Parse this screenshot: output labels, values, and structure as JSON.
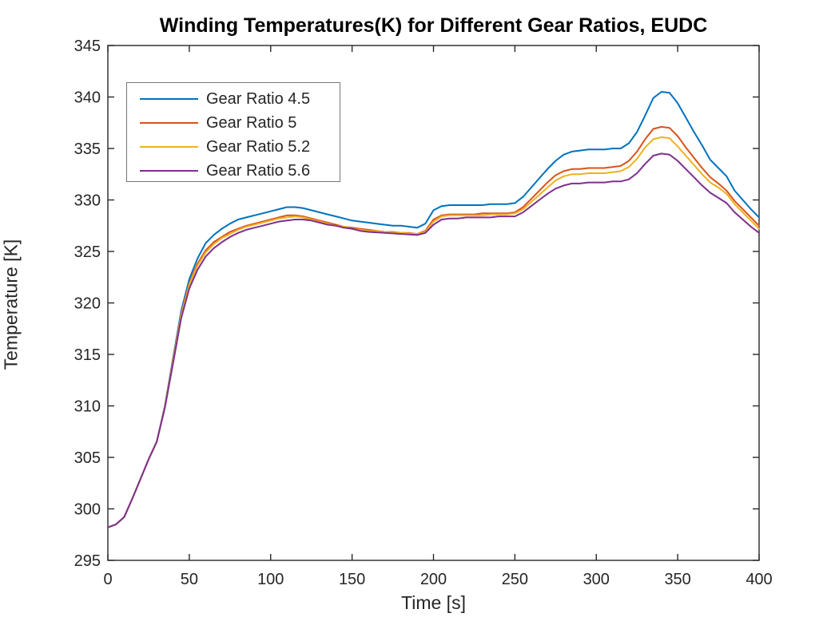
{
  "figure": {
    "title": "Winding Temperatures(K) for Different Gear Ratios, EUDC",
    "xlabel": "Time [s]",
    "ylabel": "Temperature [K]"
  },
  "chart_data": {
    "type": "line",
    "title": "Winding Temperatures(K) for Different Gear Ratios, EUDC",
    "xlabel": "Time [s]",
    "ylabel": "Temperature [K]",
    "xlim": [
      0,
      400
    ],
    "ylim": [
      295,
      345
    ],
    "x_ticks": [
      0,
      50,
      100,
      150,
      200,
      250,
      300,
      350,
      400
    ],
    "y_ticks": [
      295,
      300,
      305,
      310,
      315,
      320,
      325,
      330,
      335,
      340,
      345
    ],
    "grid": false,
    "legend_position": "top-left",
    "axis_color": "#262626",
    "x": [
      0,
      5,
      10,
      15,
      20,
      25,
      30,
      35,
      40,
      45,
      50,
      55,
      60,
      65,
      70,
      75,
      80,
      85,
      90,
      95,
      100,
      105,
      110,
      115,
      120,
      125,
      130,
      135,
      140,
      145,
      150,
      155,
      160,
      165,
      170,
      175,
      180,
      185,
      190,
      195,
      200,
      205,
      210,
      215,
      220,
      225,
      230,
      235,
      240,
      245,
      250,
      255,
      260,
      265,
      270,
      275,
      280,
      285,
      290,
      295,
      300,
      305,
      310,
      315,
      320,
      325,
      330,
      335,
      340,
      345,
      350,
      355,
      360,
      365,
      370,
      375,
      380,
      385,
      390,
      395,
      400
    ],
    "series": [
      {
        "name": "Gear Ratio 4.5",
        "color": "#0072BD",
        "values": [
          298.2,
          298.5,
          299.2,
          301.0,
          302.9,
          304.8,
          306.5,
          310.0,
          314.6,
          319.2,
          322.3,
          324.3,
          325.8,
          326.6,
          327.2,
          327.7,
          328.1,
          328.3,
          328.5,
          328.7,
          328.9,
          329.1,
          329.3,
          329.3,
          329.2,
          329.0,
          328.8,
          328.6,
          328.4,
          328.2,
          328.0,
          327.9,
          327.8,
          327.7,
          327.6,
          327.5,
          327.5,
          327.4,
          327.3,
          327.7,
          329.0,
          329.4,
          329.5,
          329.5,
          329.5,
          329.5,
          329.5,
          329.6,
          329.6,
          329.6,
          329.7,
          330.3,
          331.2,
          332.1,
          333.0,
          333.8,
          334.4,
          334.7,
          334.8,
          334.9,
          334.9,
          334.9,
          335.0,
          335.0,
          335.5,
          336.6,
          338.2,
          339.9,
          340.5,
          340.4,
          339.4,
          338.0,
          336.6,
          335.3,
          333.9,
          333.1,
          332.3,
          330.9,
          330.0,
          329.1,
          328.3
        ]
      },
      {
        "name": "Gear Ratio 5",
        "color": "#D95319",
        "values": [
          298.2,
          298.5,
          299.2,
          301.0,
          302.9,
          304.8,
          306.5,
          309.9,
          314.4,
          318.9,
          321.9,
          323.8,
          325.1,
          325.9,
          326.4,
          326.9,
          327.2,
          327.5,
          327.7,
          327.9,
          328.1,
          328.3,
          328.5,
          328.5,
          328.4,
          328.2,
          328.0,
          327.8,
          327.6,
          327.4,
          327.3,
          327.2,
          327.1,
          327.0,
          326.9,
          326.9,
          326.8,
          326.8,
          326.7,
          327.0,
          328.1,
          328.5,
          328.6,
          328.6,
          328.6,
          328.6,
          328.7,
          328.7,
          328.7,
          328.7,
          328.8,
          329.3,
          330.1,
          330.9,
          331.7,
          332.4,
          332.8,
          333.0,
          333.0,
          333.1,
          333.1,
          333.1,
          333.2,
          333.3,
          333.8,
          334.7,
          335.9,
          336.9,
          337.1,
          337.0,
          336.2,
          335.1,
          334.1,
          333.1,
          332.2,
          331.6,
          330.9,
          329.9,
          329.1,
          328.3,
          327.5
        ]
      },
      {
        "name": "Gear Ratio 5.2",
        "color": "#EDB120",
        "values": [
          298.2,
          298.5,
          299.2,
          301.0,
          302.9,
          304.8,
          306.5,
          309.9,
          314.3,
          318.8,
          321.8,
          323.6,
          324.9,
          325.7,
          326.3,
          326.7,
          327.1,
          327.4,
          327.6,
          327.8,
          328.0,
          328.2,
          328.3,
          328.4,
          328.3,
          328.1,
          327.9,
          327.7,
          327.5,
          327.4,
          327.2,
          327.1,
          327.0,
          326.95,
          326.9,
          326.85,
          326.8,
          326.75,
          326.7,
          326.9,
          327.9,
          328.4,
          328.5,
          328.5,
          328.5,
          328.5,
          328.5,
          328.6,
          328.6,
          328.6,
          328.7,
          329.1,
          329.8,
          330.5,
          331.2,
          331.9,
          332.3,
          332.5,
          332.5,
          332.6,
          332.6,
          332.6,
          332.7,
          332.8,
          333.2,
          334.0,
          335.1,
          335.9,
          336.1,
          336.0,
          335.2,
          334.3,
          333.4,
          332.5,
          331.7,
          331.2,
          330.6,
          329.6,
          328.8,
          328.0,
          327.2
        ]
      },
      {
        "name": "Gear Ratio 5.6",
        "color": "#7E2F8E",
        "values": [
          298.2,
          298.5,
          299.2,
          301.0,
          302.9,
          304.8,
          306.5,
          309.8,
          314.1,
          318.5,
          321.4,
          323.2,
          324.5,
          325.3,
          325.9,
          326.4,
          326.8,
          327.1,
          327.3,
          327.5,
          327.7,
          327.9,
          328.0,
          328.1,
          328.1,
          328.0,
          327.8,
          327.6,
          327.5,
          327.3,
          327.2,
          327.0,
          326.9,
          326.85,
          326.8,
          326.75,
          326.7,
          326.65,
          326.6,
          326.8,
          327.6,
          328.1,
          328.2,
          328.2,
          328.3,
          328.3,
          328.3,
          328.3,
          328.4,
          328.4,
          328.4,
          328.8,
          329.4,
          330.0,
          330.6,
          331.1,
          331.4,
          331.6,
          331.6,
          331.7,
          331.7,
          331.7,
          331.8,
          331.8,
          332.0,
          332.6,
          333.5,
          334.3,
          334.5,
          334.4,
          333.8,
          333.0,
          332.2,
          331.4,
          330.7,
          330.2,
          329.7,
          328.8,
          328.1,
          327.4,
          326.8
        ]
      }
    ]
  }
}
